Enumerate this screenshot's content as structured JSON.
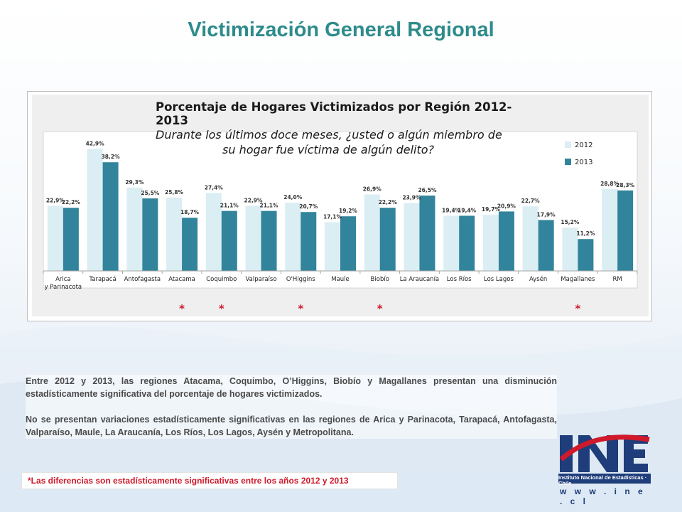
{
  "slide": {
    "title": "Victimización General Regional"
  },
  "colors": {
    "series_2012": "#daeef3",
    "series_2013": "#31849b",
    "title": "#2e8b8b",
    "asterisk": "#d0192b",
    "logo_red": "#d0192b",
    "logo_blue": "#1f3d7a"
  },
  "chart_data": {
    "type": "bar",
    "title": "Porcentaje de Hogares Victimizados por Región 2012-2013",
    "subtitle_lines": [
      "Durante los últimos doce meses, ¿usted o algún miembro de",
      "su hogar fue víctima de algún delito?"
    ],
    "categories": [
      "Arica\ny Parinacota",
      "Tarapacá",
      "Antofagasta",
      "Atacama",
      "Coquimbo",
      "Valparaíso",
      "O'Higgins",
      "Maule",
      "Biobío",
      "La Araucanía",
      "Los Ríos",
      "Los Lagos",
      "Aysén",
      "Magallanes",
      "RM"
    ],
    "series": [
      {
        "name": "2012",
        "values": [
          22.9,
          42.9,
          29.3,
          25.8,
          27.4,
          22.9,
          24.0,
          17.1,
          26.9,
          23.9,
          19.4,
          19.7,
          22.7,
          15.2,
          28.8
        ],
        "labels": [
          "22,9%",
          "42,9%",
          "29,3%",
          "25,8%",
          "27,4%",
          "22,9%",
          "24,0%",
          "17,1%",
          "26,9%",
          "23,9%",
          "19,4%",
          "19,7%",
          "22,7%",
          "15,2%",
          "28,8%"
        ]
      },
      {
        "name": "2013",
        "values": [
          22.2,
          38.2,
          25.5,
          18.7,
          21.1,
          21.1,
          20.7,
          19.2,
          22.2,
          26.5,
          19.4,
          20.9,
          17.9,
          11.2,
          28.3
        ],
        "labels": [
          "22,2%",
          "38,2%",
          "25,5%",
          "18,7%",
          "21,1%",
          "21,1%",
          "20,7%",
          "19,2%",
          "22,2%",
          "26,5%",
          "19,4%",
          "20,9%",
          "17,9%",
          "11,2%",
          "28,3%"
        ]
      }
    ],
    "significance_marks": [
      false,
      false,
      false,
      true,
      true,
      false,
      true,
      false,
      true,
      false,
      false,
      false,
      false,
      true,
      false
    ],
    "significance_symbol": "*",
    "ylim": [
      0,
      45
    ],
    "legend_position": "top-right",
    "grid": false
  },
  "text": {
    "paragraph_1": "Entre 2012 y 2013, las regiones Atacama, Coquimbo, O’Higgins, Biobío y Magallanes presentan una disminución estadísticamente significativa del porcentaje de  hogares victimizados.",
    "paragraph_2": "No se presentan variaciones estadísticamente significativas en las regiones de Arica y Parinacota, Tarapacá, Antofagasta, Valparaíso, Maule, La Araucanía, Los Ríos, Los Lagos, Aysén y Metropolitana."
  },
  "footnote": "*Las diferencias son estadísticamente significativas entre los años 2012 y 2013",
  "logo": {
    "mark": "INE",
    "caption": "Instituto Nacional de Estadísticas · Chile",
    "url": "w w w . i n e . c l"
  }
}
